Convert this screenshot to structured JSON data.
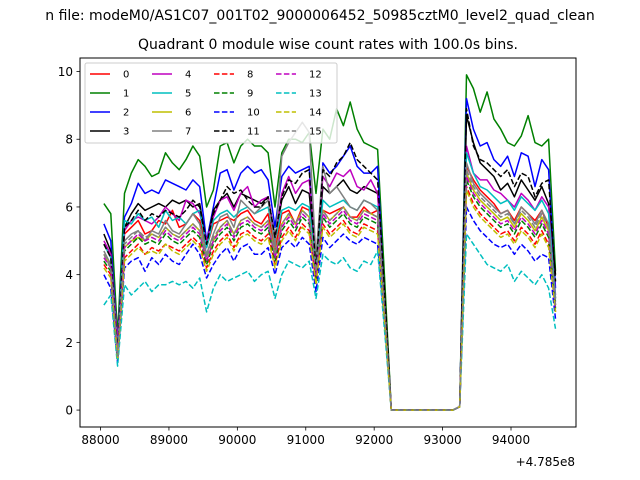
{
  "chart_data": {
    "type": "line",
    "suptitle": "n file: modeM0/AS1C07_001T02_9000006452_50985cztM0_level2_quad_clean",
    "title": "Quadrant 0 module wise count rates with 100.0s bins.",
    "xlabel": "",
    "ylabel": "",
    "x_offset_label": "+4.785e8",
    "xlim": [
      87700,
      94950
    ],
    "ylim": [
      -0.5,
      10.4
    ],
    "xticks": [
      88000,
      89000,
      90000,
      91000,
      92000,
      93000,
      94000
    ],
    "yticks": [
      0,
      2,
      4,
      6,
      8,
      10
    ],
    "grid": false,
    "legend_position": "top-left",
    "x": [
      88050,
      88150,
      88250,
      88350,
      88450,
      88550,
      88650,
      88750,
      88850,
      88950,
      89050,
      89150,
      89250,
      89350,
      89450,
      89550,
      89650,
      89750,
      89850,
      89950,
      90050,
      90150,
      90250,
      90350,
      90450,
      90550,
      90650,
      90750,
      90850,
      90950,
      91050,
      91150,
      91250,
      91350,
      91450,
      91550,
      91650,
      91750,
      91850,
      91950,
      92050,
      92150,
      92250,
      92350,
      92450,
      92550,
      92650,
      92750,
      92850,
      92950,
      93050,
      93150,
      93250,
      93350,
      93450,
      93550,
      93650,
      93750,
      93850,
      93950,
      94050,
      94150,
      94250,
      94350,
      94450,
      94550,
      94650
    ],
    "series": [
      {
        "name": "0",
        "color": "#ff0000",
        "dash": "solid",
        "values": [
          4.9,
          4.6,
          2.0,
          5.2,
          5.4,
          5.6,
          5.2,
          5.3,
          5.6,
          5.5,
          5.9,
          5.4,
          5.5,
          5.8,
          5.6,
          4.8,
          5.5,
          5.6,
          5.7,
          5.6,
          5.8,
          5.9,
          5.6,
          5.5,
          5.8,
          4.7,
          5.8,
          5.9,
          5.5,
          6.0,
          5.9,
          4.6,
          5.9,
          5.8,
          5.9,
          6.0,
          5.7,
          5.7,
          6.0,
          5.8,
          5.9,
          3.0,
          0.0,
          0.0,
          0.0,
          0.0,
          0.0,
          0.0,
          0.0,
          0.0,
          0.0,
          0.0,
          0.1,
          7.2,
          6.8,
          6.5,
          6.3,
          6.1,
          5.8,
          5.9,
          5.6,
          6.0,
          5.8,
          5.6,
          5.9,
          5.4,
          3.3
        ]
      },
      {
        "name": "1",
        "color": "#008000",
        "dash": "solid",
        "values": [
          6.1,
          5.8,
          2.2,
          6.4,
          7.0,
          7.4,
          7.2,
          6.9,
          7.0,
          7.6,
          7.3,
          7.1,
          7.4,
          7.8,
          7.5,
          6.0,
          6.5,
          7.8,
          7.9,
          7.3,
          7.8,
          8.0,
          7.8,
          7.8,
          7.6,
          6.0,
          7.6,
          8.0,
          8.0,
          7.9,
          8.2,
          6.4,
          8.3,
          8.0,
          8.9,
          8.4,
          9.1,
          8.3,
          7.9,
          7.8,
          7.7,
          4.0,
          0.0,
          0.0,
          0.0,
          0.0,
          0.0,
          0.0,
          0.0,
          0.0,
          0.0,
          0.0,
          0.1,
          9.9,
          9.5,
          8.8,
          9.4,
          8.6,
          8.3,
          7.9,
          7.8,
          8.1,
          8.7,
          7.9,
          7.8,
          8.0,
          4.1
        ]
      },
      {
        "name": "2",
        "color": "#0000ff",
        "dash": "solid",
        "values": [
          5.5,
          5.0,
          1.9,
          5.7,
          6.1,
          6.7,
          6.4,
          6.5,
          6.4,
          6.8,
          6.7,
          6.6,
          6.5,
          6.8,
          6.6,
          5.0,
          6.0,
          7.0,
          7.1,
          6.5,
          7.0,
          7.2,
          7.0,
          7.1,
          6.8,
          5.4,
          6.9,
          7.2,
          7.0,
          7.1,
          7.2,
          3.8,
          7.3,
          7.0,
          7.2,
          7.5,
          7.8,
          7.2,
          7.0,
          7.0,
          7.2,
          3.3,
          0.0,
          0.0,
          0.0,
          0.0,
          0.0,
          0.0,
          0.0,
          0.0,
          0.0,
          0.0,
          0.1,
          9.2,
          8.3,
          7.8,
          7.9,
          7.4,
          7.2,
          7.5,
          6.9,
          7.6,
          7.5,
          6.6,
          7.4,
          7.1,
          3.6
        ]
      },
      {
        "name": "3",
        "color": "#000000",
        "dash": "solid",
        "values": [
          5.2,
          4.7,
          1.8,
          5.4,
          5.8,
          6.1,
          5.9,
          6.0,
          6.1,
          6.0,
          6.2,
          6.1,
          6.2,
          6.0,
          6.1,
          4.9,
          5.9,
          6.2,
          6.4,
          6.0,
          6.4,
          6.3,
          6.2,
          6.1,
          6.3,
          5.1,
          6.2,
          6.6,
          6.1,
          6.5,
          6.4,
          4.4,
          6.6,
          6.4,
          6.6,
          6.8,
          6.5,
          6.4,
          6.6,
          6.5,
          6.4,
          3.5,
          0.0,
          0.0,
          0.0,
          0.0,
          0.0,
          0.0,
          0.0,
          0.0,
          0.0,
          0.0,
          0.1,
          8.7,
          7.9,
          7.3,
          7.1,
          6.9,
          6.5,
          6.7,
          6.3,
          6.8,
          6.5,
          6.2,
          6.6,
          6.1,
          4.0
        ]
      },
      {
        "name": "4",
        "color": "#bf00bf",
        "dash": "solid",
        "values": [
          5.0,
          4.6,
          2.0,
          5.3,
          5.6,
          5.7,
          5.6,
          5.5,
          5.7,
          6.0,
          5.8,
          5.6,
          6.2,
          6.1,
          5.8,
          5.0,
          5.7,
          6.2,
          6.3,
          5.9,
          6.4,
          6.6,
          6.0,
          6.2,
          6.3,
          5.0,
          6.4,
          6.9,
          6.4,
          6.7,
          6.8,
          4.5,
          6.9,
          6.6,
          7.0,
          6.9,
          7.1,
          6.6,
          6.5,
          6.8,
          6.4,
          3.3,
          0.0,
          0.0,
          0.0,
          0.0,
          0.0,
          0.0,
          0.0,
          0.0,
          0.0,
          0.0,
          0.1,
          7.8,
          7.0,
          6.8,
          6.8,
          6.5,
          6.4,
          6.2,
          6.0,
          6.4,
          6.2,
          5.9,
          6.3,
          6.0,
          3.4
        ]
      },
      {
        "name": "5",
        "color": "#00bfbf",
        "dash": "solid",
        "values": [
          4.9,
          4.5,
          1.7,
          5.6,
          5.5,
          5.8,
          5.6,
          5.7,
          5.4,
          5.9,
          5.6,
          5.7,
          5.5,
          5.8,
          5.9,
          4.8,
          5.6,
          5.8,
          5.9,
          5.7,
          5.9,
          6.0,
          5.8,
          5.9,
          6.0,
          5.0,
          5.9,
          6.0,
          5.9,
          6.1,
          6.0,
          4.2,
          6.2,
          6.0,
          6.1,
          6.2,
          6.0,
          5.9,
          6.2,
          6.1,
          6.0,
          3.2,
          0.0,
          0.0,
          0.0,
          0.0,
          0.0,
          0.0,
          0.0,
          0.0,
          0.0,
          0.0,
          0.1,
          7.6,
          7.0,
          6.6,
          6.5,
          6.3,
          6.1,
          6.2,
          5.9,
          6.3,
          6.1,
          5.9,
          6.2,
          5.8,
          3.3
        ]
      },
      {
        "name": "6",
        "color": "#bfbf00",
        "dash": "solid",
        "values": [
          4.6,
          4.2,
          1.6,
          4.8,
          5.0,
          5.1,
          5.0,
          5.2,
          5.1,
          5.4,
          5.2,
          5.1,
          5.3,
          5.5,
          5.3,
          4.4,
          5.0,
          5.4,
          5.6,
          5.2,
          5.6,
          5.7,
          5.5,
          5.4,
          5.6,
          4.6,
          5.5,
          5.8,
          5.5,
          5.9,
          5.7,
          4.0,
          5.9,
          5.6,
          5.8,
          6.0,
          5.7,
          5.6,
          5.9,
          5.8,
          5.7,
          3.0,
          0.0,
          0.0,
          0.0,
          0.0,
          0.0,
          0.0,
          0.0,
          0.0,
          0.0,
          0.0,
          0.1,
          7.0,
          6.5,
          6.2,
          6.0,
          5.8,
          5.6,
          5.7,
          5.4,
          5.8,
          5.6,
          5.3,
          5.7,
          5.3,
          3.1
        ]
      },
      {
        "name": "7",
        "color": "#808080",
        "dash": "solid",
        "values": [
          4.7,
          4.3,
          1.6,
          5.0,
          5.2,
          5.3,
          5.0,
          5.3,
          5.2,
          5.6,
          5.3,
          5.2,
          5.5,
          5.8,
          5.5,
          4.6,
          5.2,
          5.7,
          5.8,
          5.4,
          6.2,
          6.0,
          5.8,
          6.0,
          6.2,
          4.8,
          7.5,
          7.9,
          8.2,
          8.5,
          8.2,
          4.5,
          7.2,
          6.4,
          6.6,
          6.3,
          6.0,
          5.9,
          6.2,
          6.1,
          5.9,
          3.1,
          0.0,
          0.0,
          0.0,
          0.0,
          0.0,
          0.0,
          0.0,
          0.0,
          0.0,
          0.0,
          0.1,
          7.3,
          6.7,
          6.4,
          6.2,
          6.0,
          5.8,
          5.9,
          5.5,
          6.0,
          5.8,
          5.5,
          5.9,
          5.5,
          3.2
        ]
      },
      {
        "name": "8",
        "color": "#ff0000",
        "dash": "dashed",
        "values": [
          4.3,
          4.0,
          1.5,
          4.5,
          4.7,
          4.9,
          4.6,
          4.8,
          4.7,
          4.9,
          4.8,
          4.7,
          4.9,
          5.1,
          4.9,
          4.2,
          4.7,
          5.0,
          5.2,
          4.8,
          5.2,
          5.3,
          5.1,
          5.0,
          5.2,
          4.3,
          5.1,
          5.4,
          5.1,
          5.5,
          5.3,
          3.8,
          5.5,
          5.2,
          5.4,
          5.6,
          5.3,
          5.2,
          5.5,
          5.4,
          5.3,
          2.8,
          0.0,
          0.0,
          0.0,
          0.0,
          0.0,
          0.0,
          0.0,
          0.0,
          0.0,
          0.0,
          0.1,
          6.6,
          6.1,
          5.8,
          5.6,
          5.4,
          5.2,
          5.3,
          5.0,
          5.4,
          5.2,
          4.9,
          5.3,
          4.9,
          2.9
        ]
      },
      {
        "name": "9",
        "color": "#008000",
        "dash": "dashed",
        "values": [
          4.4,
          4.1,
          1.5,
          4.7,
          4.9,
          5.1,
          4.9,
          5.0,
          4.9,
          5.2,
          5.0,
          4.9,
          5.1,
          5.3,
          5.1,
          4.3,
          4.9,
          5.2,
          5.4,
          5.0,
          5.4,
          5.5,
          5.3,
          5.2,
          5.4,
          4.4,
          5.3,
          5.6,
          5.3,
          5.7,
          5.5,
          3.9,
          5.7,
          5.4,
          5.6,
          5.8,
          5.5,
          5.4,
          5.7,
          5.6,
          5.5,
          2.9,
          0.0,
          0.0,
          0.0,
          0.0,
          0.0,
          0.0,
          0.0,
          0.0,
          0.0,
          0.0,
          0.1,
          6.8,
          6.3,
          6.0,
          5.8,
          5.6,
          5.4,
          5.5,
          5.2,
          5.6,
          5.4,
          5.1,
          5.5,
          5.1,
          3.0
        ]
      },
      {
        "name": "10",
        "color": "#0000ff",
        "dash": "dashed",
        "values": [
          4.0,
          3.6,
          1.4,
          4.2,
          4.4,
          4.5,
          4.1,
          4.5,
          4.3,
          4.6,
          4.4,
          4.3,
          4.6,
          4.9,
          4.6,
          3.9,
          4.3,
          4.6,
          4.8,
          4.4,
          4.8,
          4.9,
          4.6,
          4.6,
          4.8,
          4.0,
          4.8,
          5.0,
          4.8,
          5.1,
          4.9,
          3.5,
          5.1,
          4.8,
          5.0,
          5.2,
          5.0,
          4.9,
          5.1,
          5.0,
          4.9,
          2.6,
          0.0,
          0.0,
          0.0,
          0.0,
          0.0,
          0.0,
          0.0,
          0.0,
          0.0,
          0.0,
          0.1,
          6.0,
          5.6,
          5.3,
          5.1,
          4.9,
          4.8,
          4.9,
          4.6,
          4.9,
          4.7,
          4.4,
          4.6,
          4.5,
          2.7
        ]
      },
      {
        "name": "11",
        "color": "#000000",
        "dash": "dashed",
        "values": [
          4.9,
          4.5,
          1.7,
          5.4,
          5.6,
          5.9,
          5.6,
          5.8,
          5.7,
          5.9,
          5.8,
          5.7,
          5.9,
          6.2,
          6.0,
          4.9,
          5.8,
          6.2,
          6.6,
          6.4,
          6.5,
          6.2,
          6.0,
          6.0,
          6.3,
          5.1,
          6.3,
          6.8,
          6.7,
          7.0,
          7.1,
          4.1,
          7.1,
          6.9,
          7.3,
          7.5,
          7.9,
          7.4,
          7.2,
          7.0,
          6.8,
          3.6,
          0.0,
          0.0,
          0.0,
          0.0,
          0.0,
          0.0,
          0.0,
          0.0,
          0.0,
          0.0,
          0.1,
          8.9,
          7.8,
          7.4,
          7.3,
          7.1,
          6.9,
          7.1,
          6.6,
          7.0,
          6.9,
          6.3,
          6.7,
          6.8,
          3.8
        ]
      },
      {
        "name": "12",
        "color": "#bf00bf",
        "dash": "dashed",
        "values": [
          4.5,
          4.2,
          1.6,
          4.8,
          5.0,
          5.2,
          5.0,
          5.1,
          5.0,
          5.3,
          5.1,
          5.0,
          5.2,
          5.4,
          5.2,
          4.4,
          5.0,
          5.3,
          5.5,
          5.1,
          5.5,
          5.6,
          5.4,
          5.3,
          5.5,
          4.5,
          5.4,
          5.7,
          5.4,
          5.8,
          5.6,
          4.0,
          5.8,
          5.5,
          5.7,
          5.9,
          5.6,
          5.5,
          5.8,
          5.7,
          5.6,
          2.9,
          0.0,
          0.0,
          0.0,
          0.0,
          0.0,
          0.0,
          0.0,
          0.0,
          0.0,
          0.0,
          0.1,
          6.9,
          6.4,
          6.1,
          5.9,
          5.7,
          5.5,
          5.6,
          5.3,
          5.7,
          5.5,
          5.2,
          5.6,
          5.2,
          3.0
        ]
      },
      {
        "name": "13",
        "color": "#00bfbf",
        "dash": "dashed",
        "values": [
          3.1,
          3.4,
          1.3,
          3.7,
          3.4,
          3.6,
          3.8,
          3.5,
          3.7,
          3.7,
          3.8,
          3.7,
          3.8,
          3.6,
          3.9,
          2.9,
          3.6,
          4.0,
          3.8,
          3.9,
          4.0,
          4.1,
          3.8,
          4.0,
          4.1,
          3.3,
          4.0,
          4.4,
          4.3,
          4.2,
          4.4,
          3.3,
          4.6,
          4.4,
          4.3,
          4.5,
          4.2,
          4.1,
          4.4,
          4.3,
          4.7,
          2.4,
          0.0,
          0.0,
          0.0,
          0.0,
          0.0,
          0.0,
          0.0,
          0.0,
          0.0,
          0.0,
          0.1,
          5.2,
          4.9,
          4.6,
          4.3,
          4.2,
          4.1,
          4.3,
          3.8,
          4.1,
          3.9,
          3.7,
          4.0,
          3.6,
          2.4
        ]
      },
      {
        "name": "14",
        "color": "#bfbf00",
        "dash": "dashed",
        "values": [
          4.2,
          3.9,
          1.5,
          4.4,
          4.6,
          4.8,
          4.6,
          4.7,
          4.6,
          4.9,
          4.7,
          4.6,
          4.8,
          5.0,
          4.8,
          4.1,
          4.6,
          4.9,
          5.1,
          4.7,
          5.1,
          5.2,
          5.0,
          4.9,
          5.1,
          4.2,
          5.0,
          5.3,
          5.0,
          5.4,
          5.2,
          3.7,
          5.4,
          5.1,
          5.3,
          5.5,
          5.2,
          5.1,
          5.4,
          5.3,
          5.2,
          2.7,
          0.0,
          0.0,
          0.0,
          0.0,
          0.0,
          0.0,
          0.0,
          0.0,
          0.0,
          0.0,
          0.1,
          6.5,
          6.0,
          5.7,
          5.5,
          5.3,
          5.1,
          5.2,
          4.9,
          5.3,
          5.1,
          4.8,
          5.2,
          4.8,
          2.9
        ]
      },
      {
        "name": "15",
        "color": "#808080",
        "dash": "dashed",
        "values": [
          4.6,
          4.2,
          1.6,
          4.9,
          5.1,
          5.3,
          5.1,
          5.2,
          5.1,
          5.4,
          5.2,
          5.1,
          5.3,
          5.5,
          5.3,
          4.5,
          5.1,
          5.4,
          5.6,
          5.2,
          5.6,
          5.7,
          5.5,
          5.4,
          5.6,
          4.6,
          5.5,
          5.8,
          5.5,
          5.9,
          5.7,
          4.1,
          5.9,
          5.6,
          5.8,
          6.0,
          5.7,
          5.6,
          5.9,
          5.8,
          5.7,
          3.0,
          0.0,
          0.0,
          0.0,
          0.0,
          0.0,
          0.0,
          0.0,
          0.0,
          0.0,
          0.0,
          0.1,
          7.1,
          6.6,
          6.3,
          6.1,
          5.9,
          5.7,
          5.8,
          5.5,
          5.9,
          5.7,
          5.4,
          5.8,
          5.4,
          3.1
        ]
      }
    ]
  }
}
